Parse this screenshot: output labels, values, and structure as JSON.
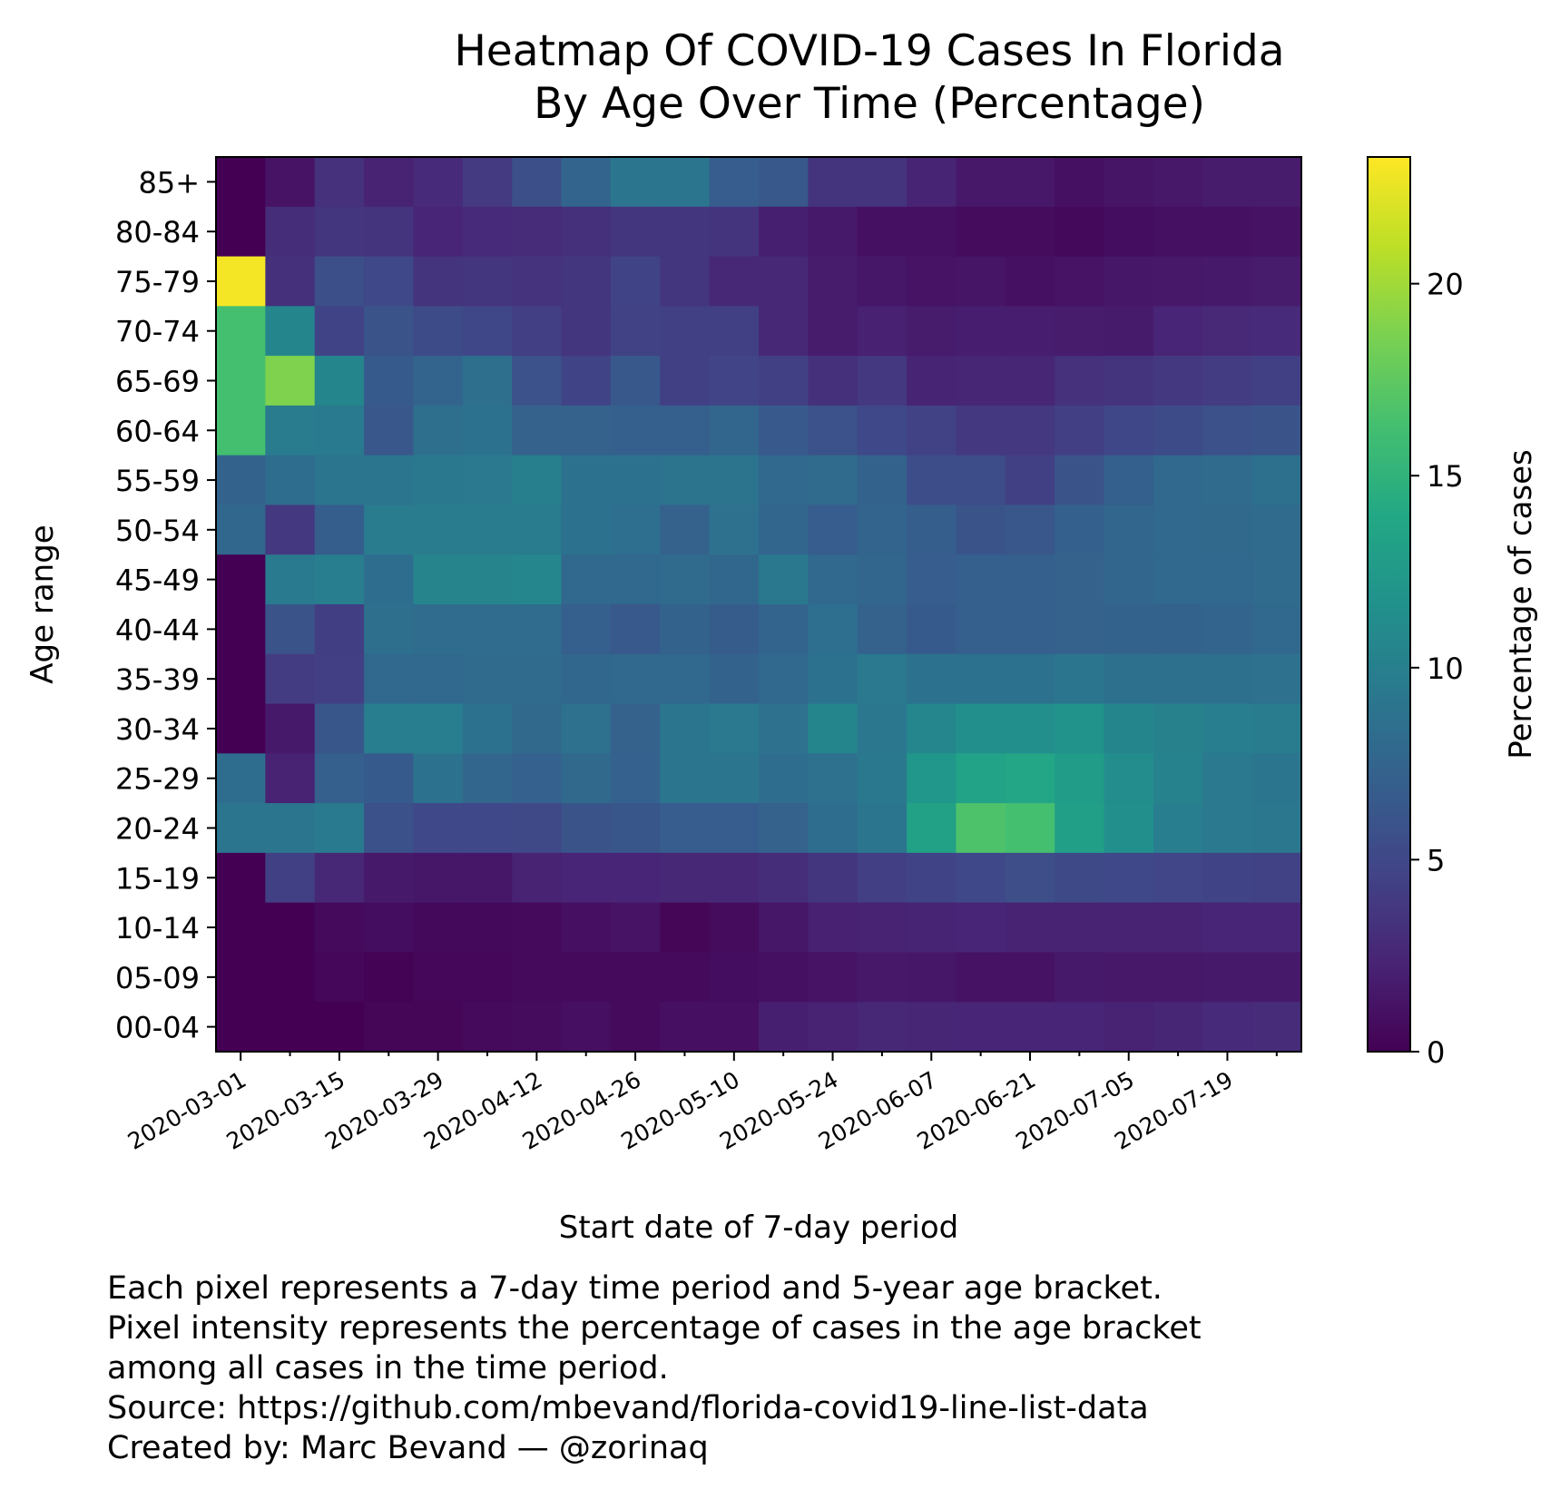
{
  "chart_data": {
    "type": "heatmap",
    "title": [
      "Heatmap Of COVID-19 Cases In Florida",
      "By Age Over Time (Percentage)"
    ],
    "xlabel": "Start date of 7-day period",
    "ylabel": "Age range",
    "colorbar_label": "Percentage of cases",
    "colormap": "viridis",
    "color_range": [
      0,
      23.3
    ],
    "colorbar_ticks": [
      0,
      5,
      10,
      15,
      20
    ],
    "x_tick_labels": [
      "2020-03-01",
      "2020-03-15",
      "2020-03-29",
      "2020-04-12",
      "2020-04-26",
      "2020-05-10",
      "2020-05-24",
      "2020-06-07",
      "2020-06-21",
      "2020-07-05",
      "2020-07-19"
    ],
    "x_periods": [
      "2020-03-01",
      "2020-03-08",
      "2020-03-15",
      "2020-03-22",
      "2020-03-29",
      "2020-04-05",
      "2020-04-12",
      "2020-04-19",
      "2020-04-26",
      "2020-05-03",
      "2020-05-10",
      "2020-05-17",
      "2020-05-24",
      "2020-05-31",
      "2020-06-07",
      "2020-06-14",
      "2020-06-21",
      "2020-06-28",
      "2020-07-05",
      "2020-07-12",
      "2020-07-19",
      "2020-07-26"
    ],
    "age_ranges": [
      "85+",
      "80-84",
      "75-79",
      "70-74",
      "65-69",
      "60-64",
      "55-59",
      "50-54",
      "45-49",
      "40-44",
      "35-39",
      "30-34",
      "25-29",
      "20-24",
      "15-19",
      "10-14",
      "05-09",
      "00-04"
    ],
    "values": [
      [
        0.0,
        1.2,
        3.3,
        2.2,
        2.8,
        3.9,
        5.6,
        7.5,
        9.1,
        9.0,
        6.8,
        6.4,
        3.5,
        3.5,
        2.3,
        1.5,
        1.5,
        1.0,
        1.3,
        1.5,
        1.8,
        1.8
      ],
      [
        0.0,
        3.0,
        3.6,
        3.5,
        2.4,
        2.8,
        2.9,
        3.2,
        3.6,
        3.6,
        3.5,
        2.0,
        1.6,
        1.0,
        1.0,
        0.7,
        0.7,
        0.5,
        0.8,
        1.0,
        1.0,
        1.1
      ],
      [
        23.0,
        3.2,
        5.6,
        5.0,
        3.5,
        3.6,
        3.4,
        3.6,
        4.6,
        3.6,
        2.6,
        2.6,
        1.8,
        1.4,
        1.2,
        1.3,
        1.0,
        1.2,
        1.4,
        1.5,
        1.6,
        1.8
      ],
      [
        16.3,
        10.5,
        4.6,
        6.0,
        5.3,
        4.9,
        4.3,
        3.6,
        4.5,
        4.4,
        4.4,
        2.6,
        1.8,
        2.1,
        1.8,
        1.9,
        1.9,
        1.8,
        1.7,
        2.4,
        2.7,
        2.8
      ],
      [
        16.3,
        18.8,
        10.5,
        6.6,
        7.5,
        8.5,
        5.9,
        4.6,
        6.4,
        4.4,
        4.7,
        4.4,
        3.2,
        3.8,
        2.3,
        2.5,
        2.5,
        3.3,
        3.5,
        3.8,
        4.1,
        4.4
      ],
      [
        16.3,
        9.6,
        9.5,
        6.3,
        8.5,
        8.8,
        7.3,
        7.3,
        7.0,
        7.0,
        7.6,
        6.5,
        5.9,
        5.0,
        4.5,
        3.8,
        3.8,
        4.3,
        4.9,
        5.3,
        5.7,
        6.0
      ],
      [
        7.4,
        8.3,
        9.0,
        9.0,
        9.3,
        9.4,
        10.0,
        8.8,
        8.8,
        8.9,
        8.9,
        7.8,
        8.0,
        7.4,
        5.4,
        5.4,
        4.4,
        6.0,
        7.1,
        7.8,
        8.1,
        8.6
      ],
      [
        7.7,
        3.8,
        6.9,
        9.6,
        9.6,
        9.6,
        9.6,
        8.8,
        8.4,
        7.3,
        8.7,
        7.6,
        6.8,
        7.5,
        6.9,
        6.0,
        6.3,
        7.1,
        7.6,
        7.8,
        7.9,
        8.0
      ],
      [
        0.0,
        9.5,
        9.8,
        8.3,
        10.4,
        10.4,
        10.7,
        7.8,
        7.8,
        8.1,
        7.7,
        9.3,
        7.8,
        7.6,
        6.8,
        7.0,
        7.0,
        7.3,
        7.6,
        7.8,
        7.8,
        8.0
      ],
      [
        0.0,
        6.0,
        4.2,
        8.5,
        8.2,
        8.2,
        8.2,
        7.0,
        6.5,
        7.4,
        6.7,
        7.5,
        8.4,
        7.3,
        6.6,
        7.0,
        7.0,
        7.3,
        7.4,
        7.4,
        7.5,
        7.8
      ],
      [
        0.0,
        4.1,
        4.3,
        7.8,
        7.8,
        8.1,
        8.1,
        7.7,
        7.8,
        7.8,
        7.4,
        7.8,
        8.8,
        9.4,
        8.8,
        8.8,
        8.8,
        9.0,
        8.6,
        8.6,
        8.6,
        8.7
      ],
      [
        0.0,
        1.6,
        6.2,
        9.8,
        9.8,
        8.8,
        7.9,
        8.7,
        7.3,
        9.0,
        9.4,
        8.7,
        10.5,
        9.2,
        10.7,
        11.5,
        11.5,
        11.9,
        10.5,
        10.2,
        9.8,
        9.6
      ],
      [
        8.3,
        2.2,
        7.0,
        6.6,
        8.8,
        7.6,
        7.2,
        7.9,
        7.2,
        9.1,
        9.1,
        8.3,
        8.7,
        9.3,
        12.2,
        13.4,
        13.8,
        12.8,
        11.3,
        10.3,
        9.4,
        9.1
      ],
      [
        9.0,
        9.0,
        9.5,
        5.8,
        5.0,
        5.0,
        5.1,
        6.0,
        6.2,
        6.8,
        6.8,
        7.3,
        8.3,
        9.0,
        13.3,
        16.7,
        16.3,
        13.1,
        11.5,
        9.9,
        9.4,
        9.2
      ],
      [
        0.0,
        4.4,
        2.6,
        1.6,
        1.4,
        1.4,
        2.2,
        2.4,
        2.4,
        2.6,
        2.6,
        3.0,
        3.6,
        4.3,
        4.6,
        5.0,
        5.5,
        5.2,
        5.0,
        4.8,
        4.6,
        4.5
      ],
      [
        0.0,
        0.0,
        0.6,
        0.8,
        0.5,
        0.5,
        0.6,
        0.9,
        1.2,
        0.3,
        0.7,
        1.4,
        2.1,
        2.2,
        2.3,
        2.4,
        2.2,
        2.2,
        2.2,
        2.2,
        2.4,
        2.4
      ],
      [
        0.0,
        0.0,
        0.4,
        0.1,
        0.4,
        0.4,
        0.6,
        0.6,
        0.6,
        0.6,
        0.8,
        1.0,
        1.2,
        1.5,
        1.4,
        1.1,
        1.1,
        1.6,
        1.5,
        1.5,
        1.6,
        1.6
      ],
      [
        0.0,
        0.0,
        0.0,
        0.3,
        0.3,
        0.6,
        0.7,
        0.9,
        0.6,
        0.9,
        0.9,
        2.0,
        2.2,
        2.6,
        2.5,
        2.4,
        2.4,
        2.4,
        2.2,
        2.5,
        2.8,
        2.9
      ]
    ]
  },
  "footnote": {
    "line1": "Each pixel represents a 7-day time period and 5-year age bracket.",
    "line2": "Pixel intensity represents the percentage of cases in the age bracket",
    "line3": "among all cases in the time period.",
    "line4": "Source: https://github.com/mbevand/florida-covid19-line-list-data",
    "line5": "Created by: Marc Bevand — @zorinaq"
  }
}
